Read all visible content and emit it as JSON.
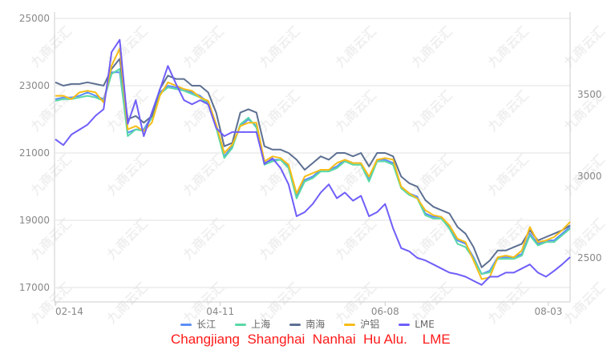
{
  "watermark": "九商云汇",
  "caption": "Changjiang  Shanghai  Nanhai  Hu Alu.    LME",
  "colors": {
    "长江": "#5b8ff9",
    "上海": "#5ad8a6",
    "南海": "#5d7092",
    "沪铝": "#f6bd16",
    "LME": "#6f5ef9"
  },
  "chart_data": {
    "type": "line",
    "legend_position": "bottom",
    "grid": true,
    "x_ticks": [
      {
        "label": "02-14",
        "index": 0
      },
      {
        "label": "04-11",
        "index": 20.5
      },
      {
        "label": "06-08",
        "index": 41
      },
      {
        "label": "08-03",
        "index": 61.3
      }
    ],
    "y_left": {
      "range": [
        16600,
        25000
      ],
      "ticks": [
        17000,
        19000,
        21000,
        23000,
        25000
      ]
    },
    "y_right": {
      "range": [
        2310,
        3990
      ],
      "ticks": [
        2500,
        3000,
        3500
      ]
    },
    "series": [
      {
        "name": "长江",
        "axis": "left",
        "values": [
          22600,
          22650,
          22650,
          22700,
          22800,
          22700,
          22600,
          23400,
          23400,
          21600,
          21700,
          21700,
          22100,
          22800,
          23000,
          22950,
          22900,
          22800,
          22700,
          22500,
          21800,
          20900,
          21200,
          21800,
          22000,
          21800,
          20700,
          20800,
          20800,
          20600,
          19700,
          20200,
          20300,
          20500,
          20500,
          20600,
          20800,
          20700,
          20700,
          20200,
          20800,
          20800,
          20700,
          20000,
          19800,
          19700,
          19200,
          19100,
          19100,
          18800,
          18400,
          18300,
          17900,
          17400,
          17500,
          17900,
          17900,
          17900,
          18000,
          18600,
          18300,
          18400,
          18400,
          18600,
          18800
        ]
      },
      {
        "name": "上海",
        "axis": "left",
        "values": [
          22550,
          22600,
          22600,
          22650,
          22700,
          22650,
          22550,
          23350,
          23500,
          21500,
          21700,
          21650,
          22050,
          22750,
          22950,
          22900,
          22850,
          22750,
          22650,
          22450,
          21750,
          20850,
          21150,
          21850,
          22050,
          21750,
          20650,
          20750,
          20800,
          20550,
          19650,
          20150,
          20250,
          20450,
          20450,
          20550,
          20750,
          20650,
          20650,
          20150,
          20750,
          20750,
          20650,
          19950,
          19750,
          19650,
          19150,
          19050,
          19050,
          18750,
          18300,
          18200,
          17850,
          17400,
          17450,
          17850,
          17850,
          17850,
          17950,
          18550,
          18250,
          18350,
          18350,
          18550,
          18750
        ]
      },
      {
        "name": "南海",
        "axis": "left",
        "values": [
          23100,
          23000,
          23050,
          23050,
          23100,
          23050,
          23000,
          23500,
          23800,
          22000,
          22100,
          21900,
          22100,
          22900,
          23300,
          23200,
          23200,
          23000,
          23000,
          22800,
          22200,
          21200,
          21300,
          22200,
          22300,
          22200,
          21200,
          21100,
          21100,
          21000,
          20800,
          20500,
          20700,
          20900,
          20800,
          21000,
          21000,
          20900,
          21000,
          20600,
          21000,
          21000,
          20900,
          20300,
          20100,
          20000,
          19600,
          19400,
          19300,
          19200,
          18800,
          18600,
          18200,
          17600,
          17800,
          18100,
          18100,
          18200,
          18300,
          18700,
          18400,
          18500,
          18600,
          18700,
          18850
        ]
      },
      {
        "name": "沪铝",
        "axis": "left",
        "values": [
          22700,
          22700,
          22600,
          22800,
          22850,
          22800,
          22500,
          23600,
          24100,
          21700,
          21800,
          21650,
          21900,
          22700,
          23100,
          23000,
          22900,
          22850,
          22650,
          22550,
          21850,
          21000,
          21250,
          21800,
          21900,
          21900,
          20750,
          20900,
          20850,
          20650,
          19800,
          20300,
          20400,
          20500,
          20500,
          20700,
          20800,
          20700,
          20700,
          20300,
          20800,
          20850,
          20800,
          20000,
          19800,
          19650,
          19300,
          19150,
          19100,
          18850,
          18450,
          18350,
          17800,
          17250,
          17300,
          17900,
          17950,
          17900,
          18100,
          18800,
          18350,
          18400,
          18500,
          18700,
          18950
        ]
      },
      {
        "name": "LME",
        "axis": "right",
        "values": [
          3226,
          3190,
          3255,
          3285,
          3315,
          3370,
          3410,
          3760,
          3835,
          3320,
          3465,
          3245,
          3390,
          3530,
          3675,
          3565,
          3465,
          3440,
          3465,
          3440,
          3295,
          3245,
          3270,
          3270,
          3270,
          3270,
          3075,
          3110,
          3050,
          2950,
          2755,
          2780,
          2830,
          2900,
          2950,
          2865,
          2900,
          2850,
          2880,
          2755,
          2780,
          2830,
          2680,
          2560,
          2540,
          2500,
          2485,
          2460,
          2435,
          2410,
          2400,
          2385,
          2360,
          2335,
          2385,
          2385,
          2410,
          2410,
          2435,
          2460,
          2410,
          2385,
          2420,
          2460,
          2505
        ]
      }
    ]
  }
}
